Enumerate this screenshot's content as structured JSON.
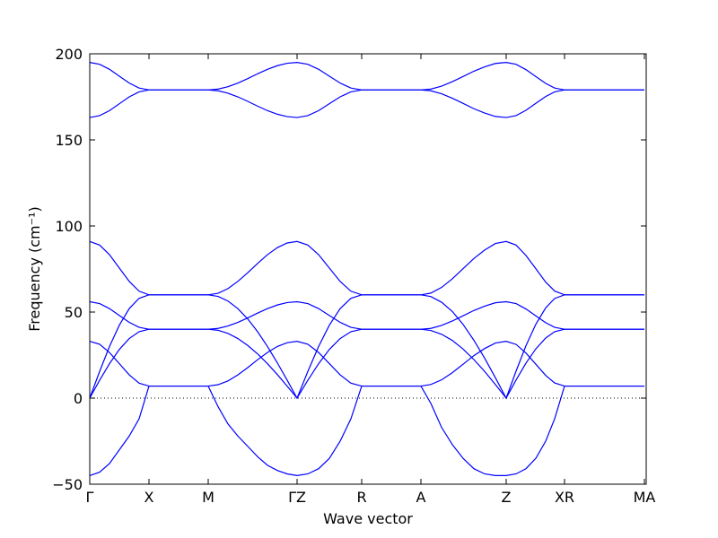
{
  "chart_data": {
    "type": "line",
    "xlabel": "Wave vector",
    "ylabel": "Frequency (cm⁻¹)",
    "x": [
      0,
      11,
      22,
      33,
      44,
      55,
      66,
      77,
      88,
      99,
      110,
      121,
      132,
      143,
      154,
      165,
      176,
      187,
      198,
      209,
      220,
      231,
      243,
      255,
      267,
      279,
      291,
      303,
      314,
      325,
      336,
      347,
      358,
      369,
      380,
      392,
      404,
      416,
      428,
      440,
      452,
      464,
      475,
      486,
      497,
      508,
      518,
      529,
      542,
      555,
      568,
      581,
      594,
      607,
      618
    ],
    "xlim": [
      0,
      620
    ],
    "xticks": [
      {
        "value": 0,
        "label": "Γ"
      },
      {
        "value": 66,
        "label": "X"
      },
      {
        "value": 132,
        "label": "M"
      },
      {
        "value": 231,
        "label": "ΓZ"
      },
      {
        "value": 303,
        "label": "R"
      },
      {
        "value": 369,
        "label": "A"
      },
      {
        "value": 464,
        "label": "Z"
      },
      {
        "value": 529,
        "label": "XR"
      },
      {
        "value": 618,
        "label": "MA"
      }
    ],
    "ylim": [
      -50,
      200
    ],
    "yticks": [
      {
        "value": -50,
        "label": "−50"
      },
      0,
      50,
      100,
      150,
      200
    ],
    "hline": 0,
    "series": [
      {
        "color": "#0000ff",
        "values": [
          195,
          193.9,
          191,
          187,
          183,
          180.1,
          179,
          179,
          179,
          179,
          179,
          179,
          179,
          179.5,
          180.9,
          183,
          185.6,
          188.4,
          191,
          193.1,
          194.5,
          195,
          193.9,
          191,
          187,
          183,
          180.1,
          179,
          179,
          179,
          179,
          179,
          179,
          179,
          179.5,
          181.2,
          183.8,
          186.8,
          189.9,
          192.4,
          194.4,
          195,
          193.9,
          190.8,
          186.8,
          182.8,
          180.1,
          179,
          179,
          179,
          179,
          179,
          179,
          179,
          179
        ]
      },
      {
        "color": "#0000ff",
        "values": [
          163,
          164.1,
          167,
          171,
          175,
          177.9,
          179,
          179,
          179,
          179,
          179,
          179,
          179,
          178.5,
          177.1,
          175,
          172.4,
          169.6,
          167,
          164.9,
          163.5,
          163,
          164.1,
          167,
          171,
          175,
          177.9,
          179,
          179,
          179,
          179,
          179,
          179,
          179,
          178.5,
          176.8,
          174.2,
          171.2,
          168.1,
          165.6,
          163.6,
          163,
          164.1,
          167.2,
          171.2,
          175.2,
          177.9,
          179,
          179,
          179,
          179,
          179,
          179,
          179,
          179
        ]
      },
      {
        "color": "#0000ff",
        "values": [
          91,
          88.9,
          83.3,
          75.5,
          67.8,
          62.1,
          60,
          60,
          60,
          60,
          60,
          60,
          60,
          60.9,
          63.6,
          67.8,
          72.8,
          78.2,
          83.3,
          87.4,
          90.1,
          91,
          88.9,
          83.3,
          75.5,
          67.8,
          62.1,
          60,
          60,
          60,
          60,
          60,
          60,
          60,
          61,
          64.3,
          69.3,
          75.2,
          81.1,
          86,
          89.8,
          91,
          88.9,
          82.9,
          75.2,
          67.4,
          62.2,
          60,
          60,
          60,
          60,
          60,
          60,
          60,
          60
        ]
      },
      {
        "color": "#0000ff",
        "values": [
          56,
          54.9,
          52,
          48,
          44,
          41.1,
          40,
          40,
          40,
          40,
          40,
          40,
          40,
          40.5,
          41.9,
          44,
          46.6,
          49.4,
          52,
          54.1,
          55.5,
          56,
          54.9,
          52,
          48,
          44,
          41.1,
          40,
          40,
          40,
          40,
          40,
          40,
          40,
          40.5,
          42.2,
          44.8,
          47.8,
          50.9,
          53.4,
          55.4,
          56,
          54.9,
          51.8,
          47.8,
          43.8,
          41.1,
          40,
          40,
          40,
          40,
          40,
          40,
          40,
          40
        ]
      },
      {
        "color": "#0000ff",
        "values": [
          33,
          31.3,
          26.5,
          20,
          13.5,
          8.7,
          7,
          7,
          7,
          7,
          7,
          7,
          7,
          7.8,
          10,
          13.5,
          17.7,
          22.3,
          26.5,
          30,
          32.2,
          33,
          31.3,
          26.5,
          20,
          13.5,
          8.7,
          7,
          7,
          7,
          7,
          7,
          7,
          7,
          7.9,
          10.6,
          14.8,
          19.7,
          24.7,
          28.8,
          32,
          33,
          31.2,
          26.2,
          19.7,
          13.2,
          8.8,
          7,
          7,
          7,
          7,
          7,
          7,
          7,
          7
        ]
      },
      {
        "color": "#0000ff",
        "values": [
          0,
          15.5,
          30,
          42.4,
          52,
          58,
          60,
          60,
          60,
          60,
          60,
          60,
          60,
          59.1,
          56.4,
          52,
          46,
          38.6,
          30,
          20.5,
          10.4,
          0,
          15.5,
          30,
          42.4,
          52,
          58,
          60,
          60,
          60,
          60,
          60,
          60,
          60,
          59,
          55.7,
          50.3,
          42.8,
          33.6,
          23.2,
          11.8,
          0,
          15.7,
          30.4,
          42.9,
          52.4,
          57.9,
          60,
          60,
          60,
          60,
          60,
          60,
          60,
          60
        ]
      },
      {
        "color": "#0000ff",
        "values": [
          0,
          10.4,
          20,
          28.3,
          34.6,
          38.6,
          40,
          40,
          40,
          40,
          40,
          40,
          40,
          39.4,
          37.6,
          34.6,
          30.6,
          25.7,
          20,
          13.7,
          6.9,
          0,
          10.4,
          20,
          28.3,
          34.6,
          38.6,
          40,
          40,
          40,
          40,
          40,
          40,
          40,
          39.3,
          37.1,
          33.5,
          28.5,
          22.4,
          15.5,
          7.9,
          0,
          10.5,
          20.3,
          28.6,
          34.9,
          38.6,
          40,
          40,
          40,
          40,
          40,
          40,
          40,
          40
        ]
      },
      {
        "color": "#0000ff",
        "values": [
          -45,
          -43,
          -38,
          -30,
          -22,
          -12,
          7,
          7,
          7,
          7,
          7,
          7,
          7,
          -5,
          -15,
          -22,
          -28,
          -34,
          -39,
          -42,
          -44,
          -45,
          -44,
          -41,
          -35,
          -25,
          -12,
          7,
          7,
          7,
          7,
          7,
          7,
          7,
          -3,
          -17,
          -27,
          -35,
          -41,
          -44,
          -45,
          -45,
          -44,
          -41,
          -35,
          -25,
          -12,
          7,
          7,
          7,
          7,
          7,
          7,
          7,
          7
        ]
      }
    ]
  }
}
